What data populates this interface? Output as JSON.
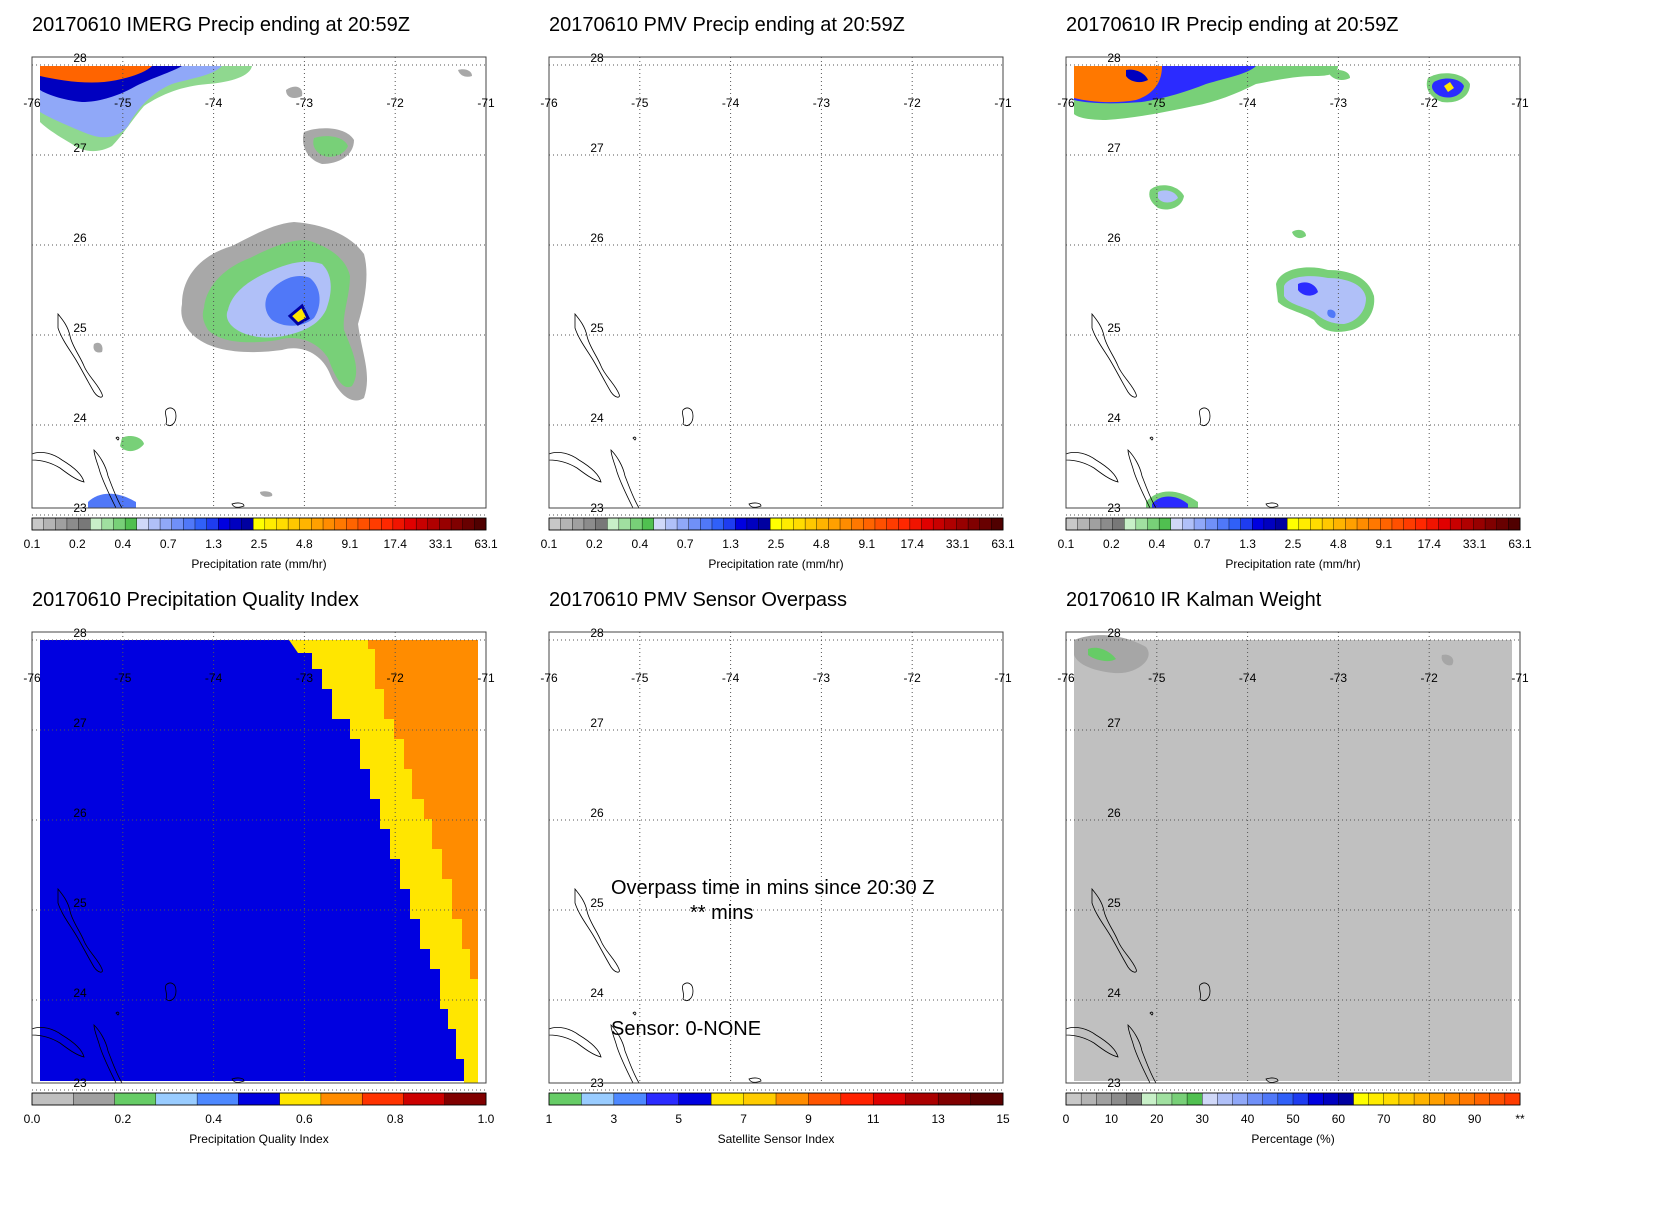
{
  "panels": [
    {
      "id": "imerg",
      "title": "20170610 IMERG Precip ending at 20:59Z",
      "colorbar_title": "Precipitation rate (mm/hr)",
      "colorbar_labels": [
        "0.1",
        "0.2",
        "0.4",
        "0.7",
        "1.3",
        "2.5",
        "4.8",
        "9.1",
        "17.4",
        "33.1",
        "63.1"
      ],
      "colorbar_scheme": "precip",
      "map_kind": "imerg"
    },
    {
      "id": "pmv",
      "title": "20170610 PMV Precip ending at 20:59Z",
      "colorbar_title": "Precipitation rate (mm/hr)",
      "colorbar_labels": [
        "0.1",
        "0.2",
        "0.4",
        "0.7",
        "1.3",
        "2.5",
        "4.8",
        "9.1",
        "17.4",
        "33.1",
        "63.1"
      ],
      "colorbar_scheme": "precip",
      "map_kind": "empty"
    },
    {
      "id": "ir",
      "title": "20170610 IR Precip ending at 20:59Z",
      "colorbar_title": "Precipitation rate (mm/hr)",
      "colorbar_labels": [
        "0.1",
        "0.2",
        "0.4",
        "0.7",
        "1.3",
        "2.5",
        "4.8",
        "9.1",
        "17.4",
        "33.1",
        "63.1"
      ],
      "colorbar_scheme": "precip",
      "map_kind": "ir"
    },
    {
      "id": "pqi",
      "title": "20170610 Precipitation Quality Index",
      "colorbar_title": "Precipitation Quality Index",
      "colorbar_labels": [
        "0.0",
        "0.2",
        "0.4",
        "0.6",
        "0.8",
        "1.0"
      ],
      "colorbar_scheme": "pqi",
      "map_kind": "pqi"
    },
    {
      "id": "sensor",
      "title": "20170610 PMV Sensor Overpass",
      "colorbar_title": "Satellite Sensor Index",
      "colorbar_labels": [
        "1",
        "3",
        "5",
        "7",
        "9",
        "11",
        "13",
        "15"
      ],
      "colorbar_scheme": "sensor",
      "map_kind": "sensor",
      "annotation_line1": "Overpass time in mins since 20:30 Z",
      "annotation_line2": "** mins",
      "annotation_sensor": "Sensor:   0-NONE"
    },
    {
      "id": "kalman",
      "title": "20170610 IR Kalman Weight",
      "colorbar_title": "Percentage (%)",
      "colorbar_labels": [
        "0",
        "10",
        "20",
        "30",
        "40",
        "50",
        "60",
        "70",
        "80",
        "90",
        "**"
      ],
      "colorbar_scheme": "pct",
      "map_kind": "kalman"
    }
  ],
  "map_axes": {
    "lon_labels": [
      "-76",
      "-75",
      "-74",
      "-73",
      "-72",
      "-71"
    ],
    "lat_labels": [
      "28",
      "27",
      "26",
      "25",
      "24",
      "23"
    ]
  },
  "colors": {
    "precip": [
      "#c8c8c8",
      "#b4b4b4",
      "#a0a0a0",
      "#8c8c8c",
      "#787878",
      "#c8f0c8",
      "#a0e0a0",
      "#78d078",
      "#50c050",
      "#d0d8f8",
      "#b0c0f8",
      "#90a8f8",
      "#7090f8",
      "#5078f8",
      "#3060f8",
      "#1e3cf0",
      "#0000e0",
      "#0000c0",
      "#0000a0",
      "#ffff00",
      "#ffec00",
      "#ffdc00",
      "#ffc800",
      "#ffb400",
      "#ffa000",
      "#ff8c00",
      "#ff7800",
      "#ff6400",
      "#ff5000",
      "#ff3c00",
      "#ff2800",
      "#f01400",
      "#e00000",
      "#c80000",
      "#b00000",
      "#980000",
      "#800000",
      "#680000",
      "#500000"
    ],
    "pqi": [
      "#c0c0c0",
      "#a0a0a0",
      "#66cc66",
      "#99ccff",
      "#4d88ff",
      "#0000e0",
      "#ffe600",
      "#ff8c00",
      "#ff3300",
      "#cc0000",
      "#800000"
    ],
    "sensor": [
      "#66cc66",
      "#99ccff",
      "#4d88ff",
      "#2b2bff",
      "#0000e0",
      "#ffe600",
      "#ffcc00",
      "#ff8c00",
      "#ff5500",
      "#ff2200",
      "#dd0000",
      "#aa0000",
      "#800000",
      "#5a0000"
    ],
    "pct": [
      "#c8c8c8",
      "#b4b4b4",
      "#a0a0a0",
      "#8c8c8c",
      "#787878",
      "#c8f0c8",
      "#a0e0a0",
      "#78d078",
      "#50c050",
      "#d0d8f8",
      "#b0c0f8",
      "#90a8f8",
      "#7090f8",
      "#5078f8",
      "#3060f8",
      "#1e3cf0",
      "#0000e0",
      "#0000c0",
      "#0000a0",
      "#ffff00",
      "#ffec00",
      "#ffdc00",
      "#ffc800",
      "#ffb400",
      "#ffa000",
      "#ff8c00",
      "#ff7800",
      "#ff6400",
      "#ff5000",
      "#ff3c00"
    ]
  }
}
